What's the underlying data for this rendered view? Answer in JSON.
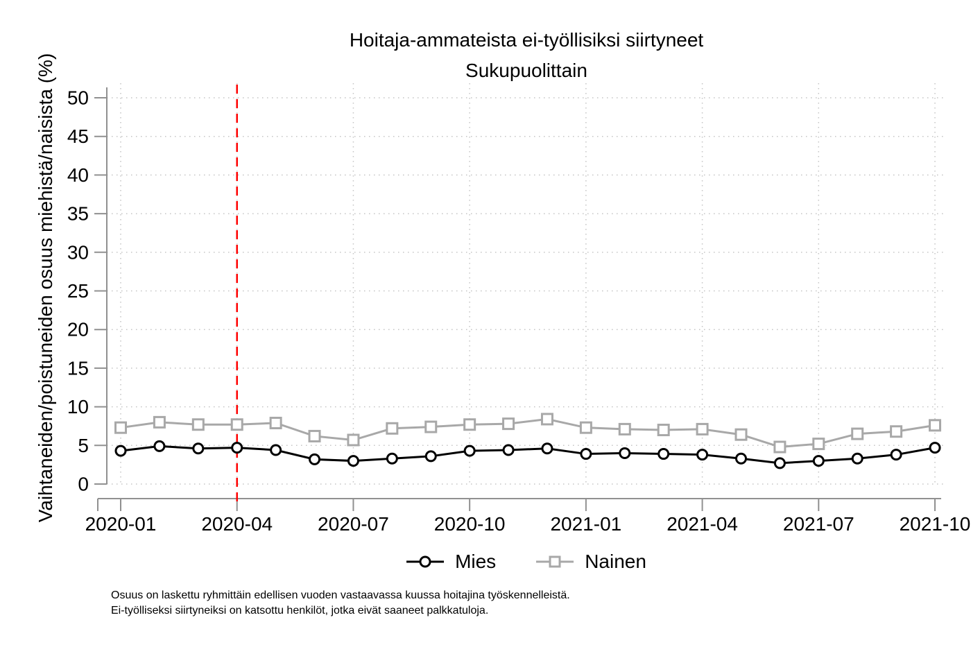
{
  "title": {
    "line1": "Hoitaja-ammateista ei-työllisiksi siirtyneet",
    "line2": "Sukupuolittain"
  },
  "chart_data": {
    "type": "line",
    "x": [
      "2020-01",
      "2020-02",
      "2020-03",
      "2020-04",
      "2020-05",
      "2020-06",
      "2020-07",
      "2020-08",
      "2020-09",
      "2020-10",
      "2020-11",
      "2020-12",
      "2021-01",
      "2021-02",
      "2021-03",
      "2021-04",
      "2021-05",
      "2021-06",
      "2021-07",
      "2021-08",
      "2021-09",
      "2021-10"
    ],
    "series": [
      {
        "name": "Mies",
        "color": "#000000",
        "marker": "circle",
        "values": [
          4.3,
          4.9,
          4.6,
          4.7,
          4.4,
          3.2,
          3.0,
          3.3,
          3.6,
          4.3,
          4.4,
          4.6,
          3.9,
          4.0,
          3.9,
          3.8,
          3.3,
          2.7,
          3.0,
          3.3,
          3.8,
          4.7
        ]
      },
      {
        "name": "Nainen",
        "color": "#a8a8a8",
        "marker": "square",
        "values": [
          7.3,
          8.0,
          7.7,
          7.7,
          7.9,
          6.2,
          5.7,
          7.2,
          7.4,
          7.7,
          7.8,
          8.4,
          7.3,
          7.1,
          7.0,
          7.1,
          6.4,
          4.8,
          5.2,
          6.5,
          6.8,
          7.6
        ]
      }
    ],
    "ylabel": "Vaihtaneiden/poistuneiden osuus miehistä/naisista (%)",
    "ylim": [
      0,
      50
    ],
    "ytick_step": 5,
    "xticks": [
      "2020-01",
      "2020-04",
      "2020-07",
      "2020-10",
      "2021-01",
      "2021-04",
      "2021-07",
      "2021-10"
    ],
    "refline": {
      "x": "2020-04",
      "color": "#ff0000",
      "style": "dashed"
    },
    "grid": true,
    "legend_position": "bottom",
    "axis_color": "#909090",
    "grid_color": "#c4c4c4"
  },
  "footnotes": [
    "Osuus on laskettu ryhmittäin edellisen vuoden vastaavassa kuussa hoitajina työskennelleistä.",
    "Ei-työlliseksi siirtyneiksi on katsottu henkilöt, jotka eivät saaneet palkkatuloja."
  ]
}
